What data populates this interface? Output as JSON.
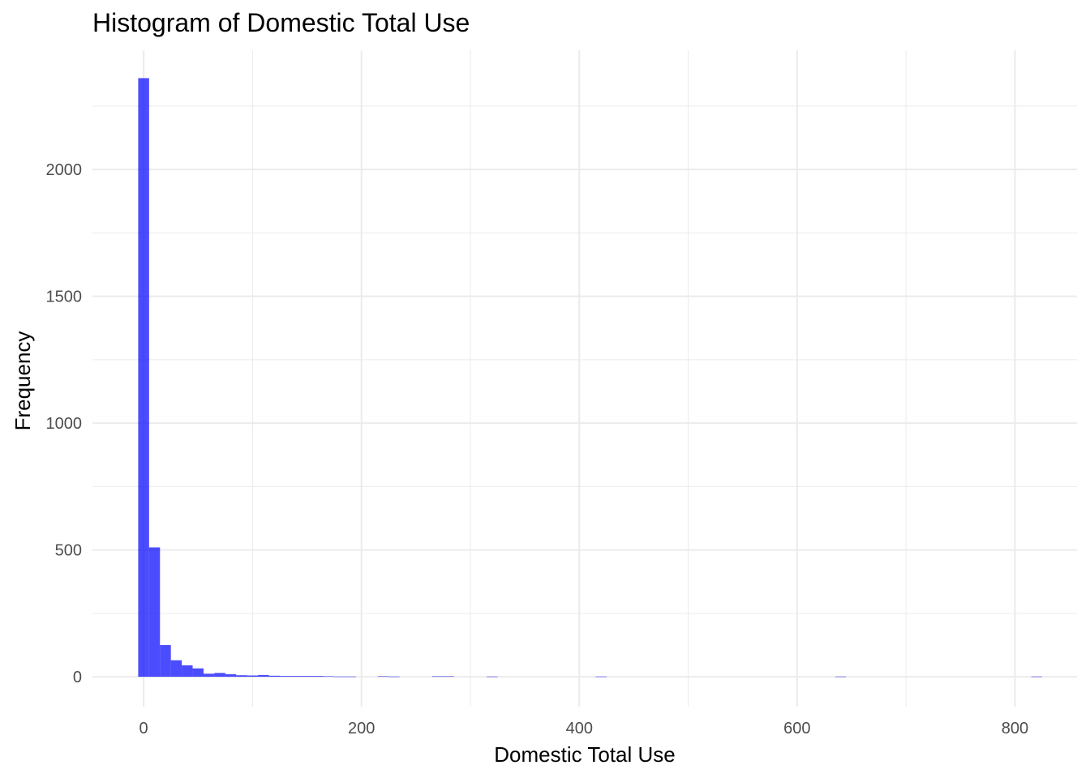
{
  "chart_data": {
    "type": "histogram",
    "title": "Histogram of Domestic Total Use",
    "xlabel": "Domestic Total Use",
    "ylabel": "Frequency",
    "xlim": [
      -47,
      857
    ],
    "ylim": [
      -118,
      2470
    ],
    "x_ticks": [
      0,
      200,
      400,
      600,
      800
    ],
    "x_tick_labels": [
      "0",
      "200",
      "400",
      "600",
      "800"
    ],
    "x_minor_ticks": [
      100,
      300,
      500,
      700
    ],
    "y_ticks": [
      0,
      500,
      1000,
      1500,
      2000
    ],
    "y_tick_labels": [
      "0",
      "500",
      "1000",
      "1500",
      "2000"
    ],
    "y_minor_ticks": [
      250,
      750,
      1250,
      1750,
      2250
    ],
    "grid": true,
    "bar_color": "#0000ff",
    "bar_opacity": 0.7,
    "grid_color": "#ebebeb",
    "bins": [
      {
        "x0": -5,
        "x1": 5,
        "count": 2360
      },
      {
        "x0": 5,
        "x1": 15,
        "count": 510
      },
      {
        "x0": 15,
        "x1": 25,
        "count": 125
      },
      {
        "x0": 25,
        "x1": 35,
        "count": 65
      },
      {
        "x0": 35,
        "x1": 45,
        "count": 45
      },
      {
        "x0": 45,
        "x1": 55,
        "count": 33
      },
      {
        "x0": 55,
        "x1": 65,
        "count": 12
      },
      {
        "x0": 65,
        "x1": 75,
        "count": 15
      },
      {
        "x0": 75,
        "x1": 85,
        "count": 10
      },
      {
        "x0": 85,
        "x1": 95,
        "count": 6
      },
      {
        "x0": 95,
        "x1": 105,
        "count": 5
      },
      {
        "x0": 105,
        "x1": 115,
        "count": 7
      },
      {
        "x0": 115,
        "x1": 125,
        "count": 4
      },
      {
        "x0": 125,
        "x1": 135,
        "count": 3
      },
      {
        "x0": 135,
        "x1": 145,
        "count": 3
      },
      {
        "x0": 145,
        "x1": 155,
        "count": 3
      },
      {
        "x0": 155,
        "x1": 165,
        "count": 3
      },
      {
        "x0": 165,
        "x1": 175,
        "count": 2
      },
      {
        "x0": 175,
        "x1": 185,
        "count": 1
      },
      {
        "x0": 185,
        "x1": 195,
        "count": 1
      },
      {
        "x0": 215,
        "x1": 225,
        "count": 2
      },
      {
        "x0": 225,
        "x1": 235,
        "count": 1
      },
      {
        "x0": 265,
        "x1": 275,
        "count": 2
      },
      {
        "x0": 275,
        "x1": 285,
        "count": 2
      },
      {
        "x0": 315,
        "x1": 325,
        "count": 1
      },
      {
        "x0": 415,
        "x1": 425,
        "count": 1
      },
      {
        "x0": 635,
        "x1": 645,
        "count": 1
      },
      {
        "x0": 815,
        "x1": 825,
        "count": 1
      }
    ]
  }
}
